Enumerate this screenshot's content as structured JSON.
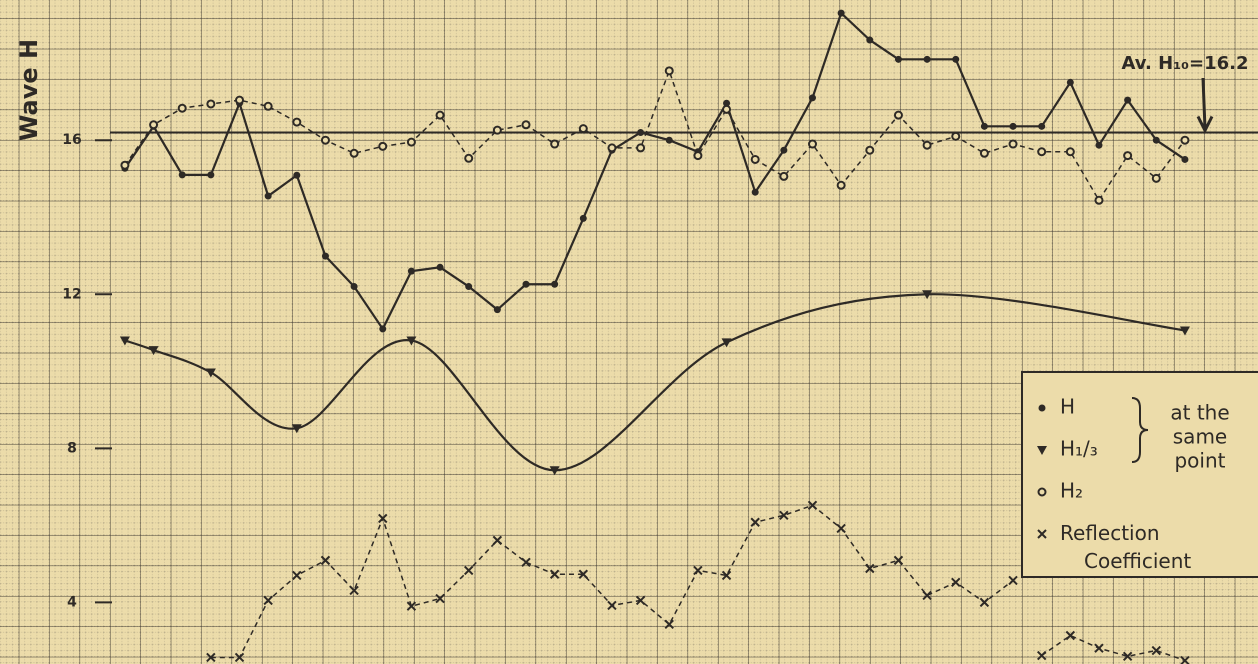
{
  "chart_data": {
    "type": "line",
    "y_label": "Wave H",
    "annotation": "Av. H₁₀=16.2",
    "avg_line": 16.2,
    "legend_note": [
      "at the",
      "same",
      "point"
    ],
    "xlim": [
      -4.36,
      39.55
    ],
    "ylim": [
      2.4,
      19.64
    ],
    "yticks": [
      4,
      8,
      12,
      16
    ],
    "grid": true,
    "legend": "lower right",
    "series": [
      {
        "name": "H",
        "color": "#2e2a26",
        "marker": "dot",
        "dash": false,
        "smooth": false,
        "x": [
          0,
          1,
          2,
          3,
          4,
          5,
          6,
          7,
          8,
          9,
          10,
          11,
          12,
          13,
          14,
          15,
          16,
          17,
          18,
          19,
          20,
          21,
          22,
          23,
          24,
          25,
          26,
          27,
          28,
          29,
          30,
          31,
          32,
          33,
          34,
          35,
          36,
          37
        ],
        "values": [
          15.27,
          16.36,
          15.1,
          15.1,
          16.96,
          14.55,
          15.09,
          12.99,
          12.2,
          11.1,
          12.6,
          12.7,
          12.2,
          11.6,
          12.26,
          12.26,
          13.97,
          15.74,
          16.2,
          16,
          15.7,
          16.96,
          14.65,
          15.74,
          17.1,
          19.3,
          18.6,
          18.1,
          18.1,
          18.1,
          16.36,
          16.36,
          16.36,
          17.5,
          15.87,
          17.04,
          16,
          15.5
        ]
      },
      {
        "name": "H₁/₃",
        "color": "#2e2a26",
        "marker": "triangle",
        "dash": false,
        "smooth": true,
        "x": [
          0,
          1,
          3,
          6,
          10,
          15,
          21,
          28,
          37
        ],
        "values": [
          10.8,
          10.55,
          9.97,
          8.52,
          10.8,
          7.43,
          10.75,
          12.0,
          11.06
        ]
      },
      {
        "name": "H₂",
        "color": "#2e2a26",
        "marker": "circle",
        "dash": true,
        "smooth": false,
        "x": [
          0,
          1,
          2,
          3,
          4,
          5,
          6,
          7,
          8,
          9,
          10,
          11,
          12,
          13,
          14,
          15,
          16,
          17,
          18,
          19,
          20,
          21,
          22,
          23,
          24,
          25,
          26,
          27,
          28,
          29,
          30,
          31,
          32,
          33,
          34,
          35,
          36,
          37
        ],
        "values": [
          15.35,
          16.4,
          16.83,
          16.94,
          17.04,
          16.88,
          16.47,
          16,
          15.66,
          15.84,
          15.95,
          16.65,
          15.53,
          16.26,
          16.4,
          15.9,
          16.3,
          15.8,
          15.8,
          17.8,
          15.6,
          16.8,
          15.5,
          15.06,
          15.9,
          14.83,
          15.74,
          16.65,
          15.87,
          16.1,
          15.66,
          15.9,
          15.7,
          15.7,
          14.44,
          15.6,
          15.01,
          16
        ]
      },
      {
        "name": "Reflection Coefficient",
        "color": "#2e2a26",
        "marker": "x",
        "dash": true,
        "smooth": false,
        "x": [
          3,
          4,
          5,
          6,
          7,
          8,
          9,
          10,
          11,
          12,
          13,
          14,
          15,
          16,
          17,
          18,
          19,
          20,
          21,
          22,
          23,
          24,
          25,
          26,
          27,
          28,
          29,
          30,
          31,
          31.5,
          32,
          33,
          34,
          35,
          36,
          37
        ],
        "values": [
          2.57,
          2.57,
          4.05,
          4.7,
          5.09,
          4.31,
          6.18,
          3.9,
          4.1,
          4.83,
          5.61,
          5.04,
          4.73,
          4.73,
          3.92,
          4.05,
          3.43,
          4.83,
          4.7,
          6.08,
          6.26,
          6.52,
          5.92,
          4.88,
          5.09,
          4.18,
          4.52,
          4,
          4.57,
          null,
          2.62,
          3.14,
          2.81,
          2.6,
          2.75,
          2.49
        ]
      }
    ]
  }
}
